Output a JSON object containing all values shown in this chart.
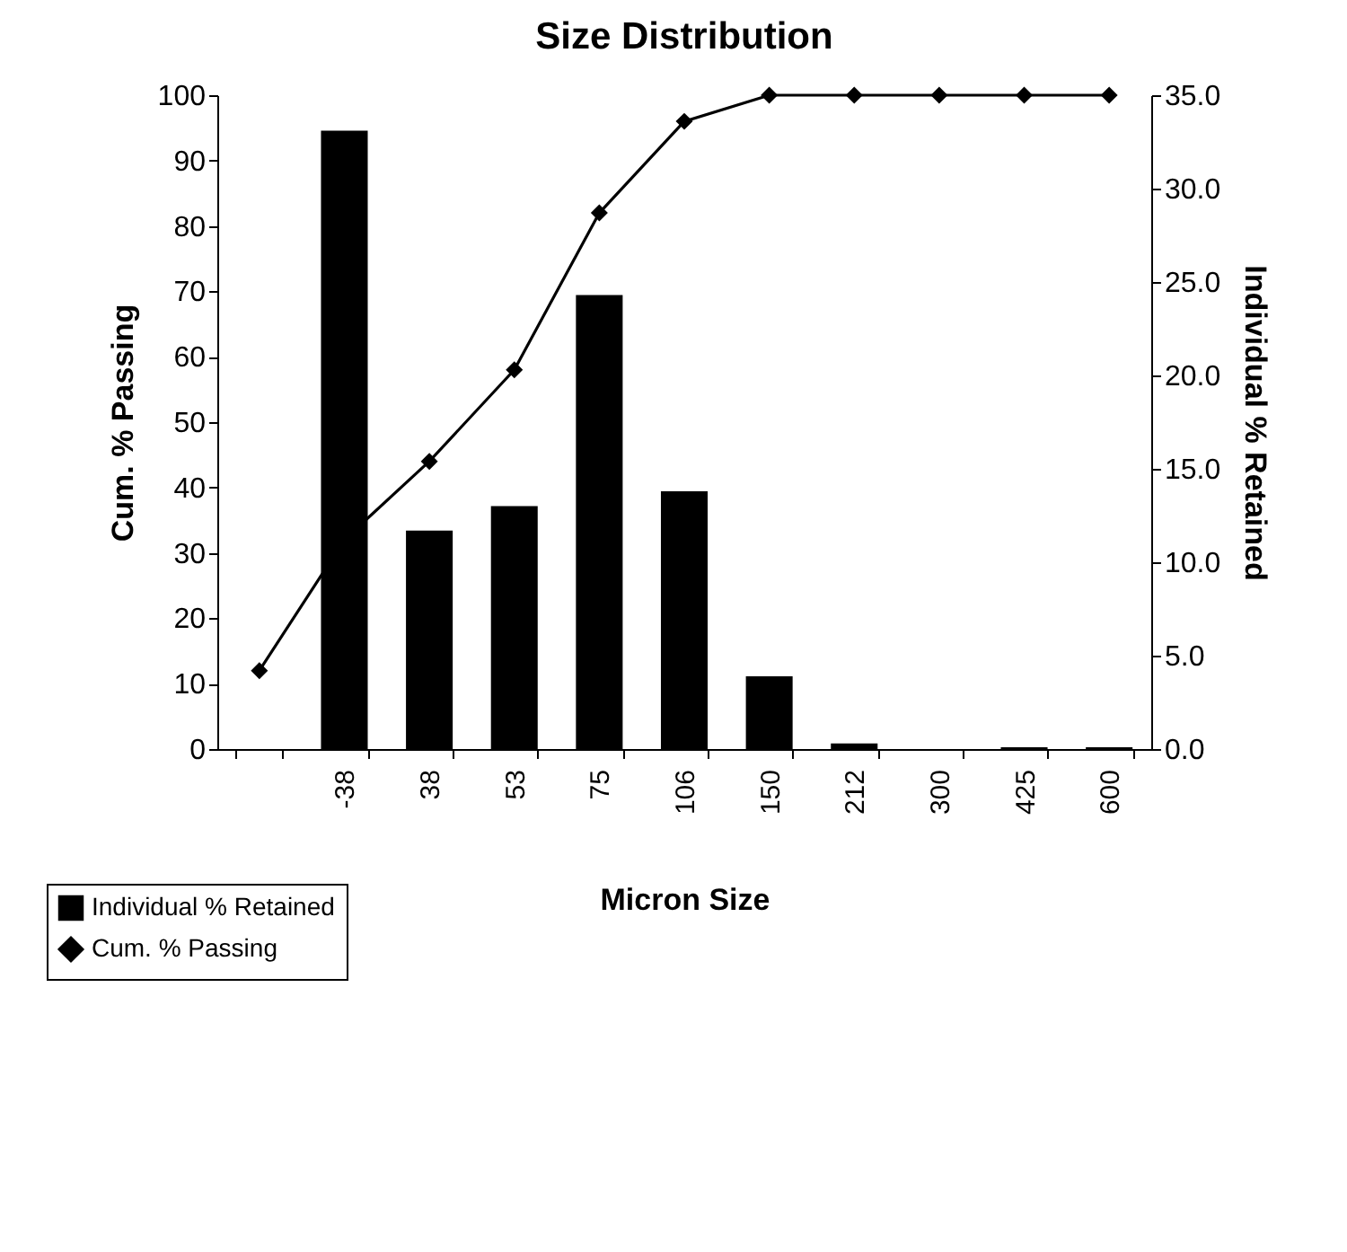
{
  "chart_data": {
    "type": "bar",
    "title": "Size Distribution",
    "xlabel": "Micron Size",
    "ylabel": "Cum. % Passing",
    "y2label": "Individual % Retained",
    "categories": [
      null,
      "-38",
      "38",
      "53",
      "75",
      "106",
      "150",
      "212",
      "300",
      "425",
      "600"
    ],
    "series": [
      {
        "name": "Individual % Retained",
        "axis": "y2",
        "color": "#000000",
        "values": [
          null,
          33.1,
          11.7,
          13.0,
          24.3,
          13.8,
          3.9,
          0.3,
          0,
          0.1,
          0.1
        ]
      },
      {
        "name": "Cum. % Passing",
        "type": "line",
        "color": "#000000",
        "values": [
          12,
          32,
          44,
          58,
          82,
          96,
          100,
          100,
          100,
          100,
          100
        ]
      }
    ],
    "ylim": [
      0,
      100
    ],
    "yticks": [
      0,
      10,
      20,
      30,
      40,
      50,
      60,
      70,
      80,
      90,
      100
    ],
    "y2lim": [
      0,
      35
    ],
    "y2ticks": [
      {
        "value": 0,
        "label": "0.0"
      },
      {
        "value": 5,
        "label": "5.0"
      },
      {
        "value": 10,
        "label": "10.0"
      },
      {
        "value": 15,
        "label": "15.0"
      },
      {
        "value": 20,
        "label": "20.0"
      },
      {
        "value": 25,
        "label": "25.0"
      },
      {
        "value": 30,
        "label": "30.0"
      },
      {
        "value": 35,
        "label": "35.0"
      }
    ],
    "legend": "bottom left",
    "marker": "diamond",
    "line_style": "solid",
    "grid": false
  }
}
